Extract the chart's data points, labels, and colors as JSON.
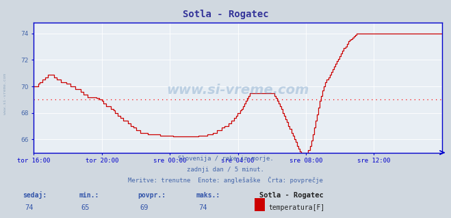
{
  "title": "Sotla - Rogatec",
  "background_color": "#d0d8e0",
  "plot_bg_color": "#e8eef4",
  "grid_color": "#ffffff",
  "line_color": "#cc0000",
  "avg_line_color": "#ff0000",
  "avg_value": 69.0,
  "ylim": [
    65.0,
    74.8
  ],
  "yticks": [
    66,
    68,
    70,
    72,
    74
  ],
  "tick_color": "#4466aa",
  "axis_color": "#0000cc",
  "title_color": "#333399",
  "watermark": "www.si-vreme.com",
  "subtitle_lines": [
    "Slovenija / reke in morje.",
    "zadnji dan / 5 minut.",
    "Meritve: trenutne  Enote: anglešaške  Črta: povprečje"
  ],
  "footer_labels": [
    "sedaj:",
    "min.:",
    "povpr.:",
    "maks.:"
  ],
  "footer_values": [
    "74",
    "65",
    "69",
    "74"
  ],
  "footer_station": "Sotla - Rogatec",
  "footer_series": "temperatura[F]",
  "legend_color": "#cc0000",
  "xtick_labels": [
    "tor 16:00",
    "tor 20:00",
    "sre 00:00",
    "sre 04:00",
    "sre 08:00",
    "sre 12:00"
  ],
  "data_y": [
    70.0,
    70.0,
    70.0,
    70.2,
    70.3,
    70.3,
    70.5,
    70.5,
    70.7,
    70.7,
    70.9,
    70.9,
    70.9,
    70.9,
    70.7,
    70.7,
    70.5,
    70.5,
    70.5,
    70.3,
    70.3,
    70.3,
    70.3,
    70.2,
    70.2,
    70.2,
    70.0,
    70.0,
    70.0,
    69.8,
    69.8,
    69.8,
    69.8,
    69.6,
    69.6,
    69.4,
    69.4,
    69.4,
    69.2,
    69.2,
    69.2,
    69.2,
    69.2,
    69.2,
    69.1,
    69.1,
    69.0,
    69.0,
    68.9,
    68.7,
    68.7,
    68.5,
    68.5,
    68.5,
    68.3,
    68.3,
    68.2,
    68.0,
    68.0,
    67.8,
    67.8,
    67.6,
    67.6,
    67.4,
    67.4,
    67.4,
    67.2,
    67.2,
    67.0,
    67.0,
    66.9,
    66.9,
    66.7,
    66.7,
    66.7,
    66.5,
    66.5,
    66.5,
    66.5,
    66.5,
    66.4,
    66.4,
    66.4,
    66.4,
    66.4,
    66.4,
    66.4,
    66.4,
    66.4,
    66.3,
    66.3,
    66.3,
    66.3,
    66.3,
    66.3,
    66.3,
    66.3,
    66.3,
    66.2,
    66.2,
    66.2,
    66.2,
    66.2,
    66.2,
    66.2,
    66.2,
    66.2,
    66.2,
    66.2,
    66.2,
    66.2,
    66.2,
    66.2,
    66.2,
    66.2,
    66.2,
    66.3,
    66.3,
    66.3,
    66.3,
    66.3,
    66.3,
    66.4,
    66.4,
    66.4,
    66.4,
    66.5,
    66.5,
    66.5,
    66.7,
    66.7,
    66.7,
    66.9,
    66.9,
    67.0,
    67.0,
    67.0,
    67.2,
    67.2,
    67.4,
    67.4,
    67.6,
    67.8,
    68.0,
    68.0,
    68.2,
    68.3,
    68.5,
    68.7,
    68.9,
    69.1,
    69.3,
    69.5,
    69.5,
    69.5,
    69.5,
    69.5,
    69.5,
    69.5,
    69.5,
    69.5,
    69.5,
    69.5,
    69.5,
    69.5,
    69.5,
    69.5,
    69.5,
    69.5,
    69.3,
    69.1,
    68.9,
    68.7,
    68.5,
    68.3,
    68.0,
    67.8,
    67.5,
    67.3,
    67.0,
    66.8,
    66.5,
    66.3,
    66.0,
    65.8,
    65.5,
    65.3,
    65.1,
    65.0,
    65.0,
    65.0,
    65.0,
    65.0,
    65.2,
    65.5,
    65.9,
    66.4,
    66.9,
    67.4,
    67.9,
    68.4,
    68.9,
    69.3,
    69.7,
    70.0,
    70.3,
    70.5,
    70.7,
    70.9,
    71.1,
    71.3,
    71.5,
    71.7,
    71.9,
    72.1,
    72.3,
    72.5,
    72.7,
    72.9,
    73.0,
    73.2,
    73.4,
    73.5,
    73.6,
    73.7,
    73.8,
    73.9,
    74.0,
    74.0,
    74.0,
    74.0,
    74.0,
    74.0,
    74.0,
    74.0,
    74.0,
    74.0,
    74.0,
    74.0,
    74.0,
    74.0,
    74.0,
    74.0,
    74.0,
    74.0,
    74.0,
    74.0,
    74.0,
    74.0,
    74.0,
    74.0,
    74.0,
    74.0,
    74.0,
    74.0,
    74.0,
    74.0,
    74.0,
    74.0,
    74.0,
    74.0,
    74.0,
    74.0,
    74.0,
    74.0,
    74.0,
    74.0,
    74.0,
    74.0,
    74.0,
    74.0,
    74.0,
    74.0,
    74.0,
    74.0,
    74.0,
    74.0,
    74.0,
    74.0,
    74.0,
    74.0,
    74.0,
    74.0,
    74.0,
    74.0,
    74.0,
    74.0,
    74.0
  ]
}
